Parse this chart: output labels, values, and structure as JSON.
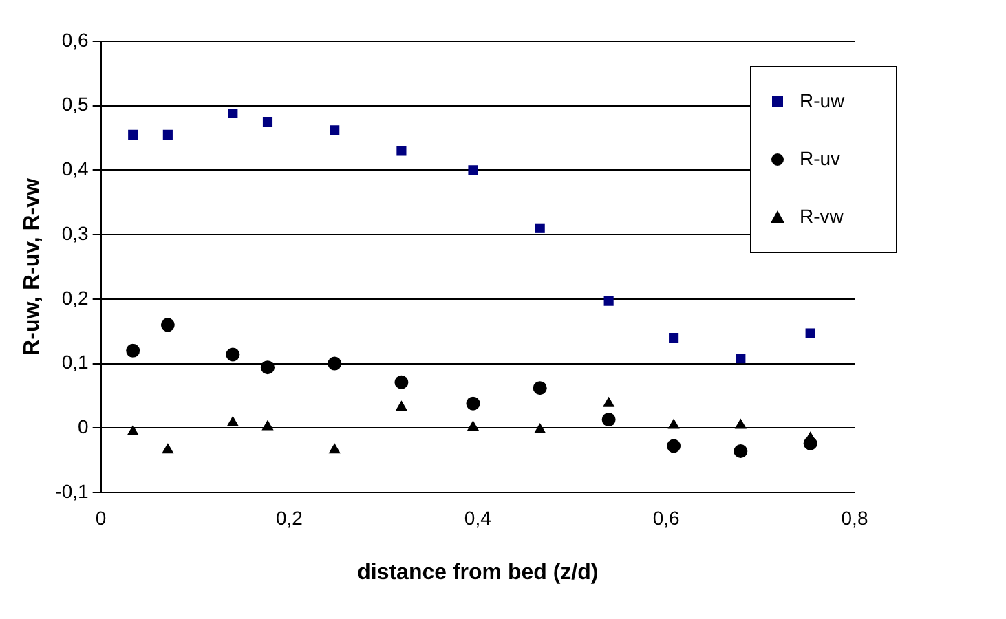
{
  "chart_data": {
    "type": "scatter",
    "xlabel": "distance from bed (z/d)",
    "ylabel": "R-uw, R-uv, R-vw",
    "x": [
      0.034,
      0.071,
      0.14,
      0.177,
      0.248,
      0.319,
      0.395,
      0.466,
      0.539,
      0.608,
      0.679,
      0.753
    ],
    "series": [
      {
        "name": "R-uw",
        "color": "#000080",
        "marker": "square",
        "values": [
          0.455,
          0.455,
          0.488,
          0.475,
          0.462,
          0.43,
          0.4,
          0.31,
          0.197,
          0.14,
          0.108,
          0.147
        ]
      },
      {
        "name": "R-uv",
        "color": "#000000",
        "marker": "circle",
        "values": [
          0.12,
          0.16,
          0.114,
          0.094,
          0.1,
          0.071,
          0.038,
          0.062,
          0.013,
          -0.028,
          -0.036,
          -0.024
        ]
      },
      {
        "name": "R-vw",
        "color": "#000000",
        "marker": "triangle",
        "values": [
          -0.006,
          -0.034,
          0.008,
          0.002,
          -0.034,
          0.032,
          0.001,
          -0.003,
          0.038,
          0.004,
          0.004,
          -0.016
        ]
      }
    ],
    "xlim": [
      0,
      0.8
    ],
    "xticks": [
      0,
      {
        "value": 0.2,
        "label": "0,2"
      },
      {
        "value": 0.4,
        "label": "0,4"
      },
      {
        "value": 0.6,
        "label": "0,6"
      },
      {
        "value": 0.8,
        "label": "0,8"
      }
    ],
    "ylim": [
      -0.1,
      0.6
    ],
    "yticks": [
      {
        "value": -0.1,
        "label": "-0,1"
      },
      0,
      {
        "value": 0.1,
        "label": "0,1"
      },
      {
        "value": 0.2,
        "label": "0,2"
      },
      {
        "value": 0.3,
        "label": "0,3"
      },
      {
        "value": 0.4,
        "label": "0,4"
      },
      {
        "value": 0.5,
        "label": "0,5"
      },
      {
        "value": 0.6,
        "label": "0,6"
      }
    ],
    "grid": "y",
    "legend": "top right"
  }
}
